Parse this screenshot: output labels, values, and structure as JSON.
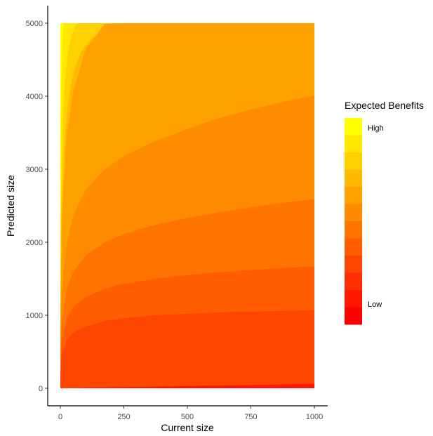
{
  "chart_data": {
    "type": "area",
    "title": "",
    "xlabel": "Current size",
    "ylabel": "Predicted size",
    "xlim": [
      0,
      1000
    ],
    "ylim": [
      0,
      5000
    ],
    "x_ticks": [
      0,
      250,
      500,
      750,
      1000
    ],
    "y_ticks": [
      0,
      1000,
      2000,
      3000,
      4000,
      5000
    ],
    "grid": false,
    "legend": {
      "title": "Expected Benefits",
      "position": "right",
      "high_label": "High",
      "low_label": "Low",
      "colors": [
        "#FF0000",
        "#FF1700",
        "#FF2E00",
        "#FF4600",
        "#FF5D00",
        "#FF7400",
        "#FF8B00",
        "#FFA200",
        "#FFB900",
        "#FFD100",
        "#FFE800",
        "#FFFF00"
      ]
    },
    "contour_bands": [
      {
        "color": "#FF1700",
        "x": [
          0,
          1000
        ],
        "y": [
          0,
          60
        ]
      },
      {
        "color": "#FF4600",
        "x": [
          0,
          5,
          25,
          50,
          100,
          175,
          250,
          375,
          500,
          625,
          750,
          875,
          1000
        ],
        "y": [
          130,
          450,
          660,
          760,
          850,
          920,
          960,
          1000,
          1020,
          1040,
          1050,
          1060,
          1070
        ]
      },
      {
        "color": "#FF5D00",
        "x": [
          0,
          5,
          25,
          50,
          100,
          175,
          250,
          375,
          500,
          625,
          750,
          875,
          1000
        ],
        "y": [
          200,
          650,
          950,
          1110,
          1250,
          1360,
          1430,
          1500,
          1550,
          1590,
          1620,
          1645,
          1670
        ]
      },
      {
        "color": "#FF7400",
        "x": [
          0,
          5,
          25,
          50,
          100,
          175,
          250,
          375,
          500,
          625,
          750,
          875,
          1000
        ],
        "y": [
          290,
          900,
          1350,
          1590,
          1820,
          2000,
          2110,
          2240,
          2330,
          2410,
          2480,
          2540,
          2590
        ]
      },
      {
        "color": "#FF8B00",
        "x": [
          0,
          5,
          25,
          50,
          100,
          175,
          250,
          375,
          500,
          625,
          750,
          875,
          1000
        ],
        "y": [
          420,
          1300,
          1980,
          2360,
          2720,
          3000,
          3180,
          3390,
          3550,
          3700,
          3820,
          3920,
          4010
        ]
      },
      {
        "color": "#FFA200",
        "x": [
          0,
          5,
          25,
          50,
          100,
          175,
          250,
          375,
          500,
          625,
          750,
          875,
          1000
        ],
        "y": [
          600,
          2300,
          3450,
          4050,
          4650,
          4990,
          5000,
          5000,
          5000,
          5000,
          5000,
          5000,
          5000
        ]
      },
      {
        "color": "#FFB900",
        "x": [
          0,
          5,
          15,
          30,
          50,
          80,
          120,
          180,
          240,
          300,
          310,
          1000
        ],
        "y": [
          900,
          2400,
          3300,
          3900,
          4300,
          4600,
          4780,
          4900,
          4970,
          5000,
          5000,
          5000
        ]
      },
      {
        "color": "#FFD100",
        "x": [
          0,
          2,
          5,
          10,
          18,
          30,
          45,
          60,
          68,
          1000
        ],
        "y": [
          1000,
          2100,
          3000,
          3700,
          4200,
          4600,
          4850,
          4970,
          5000,
          5000
        ]
      },
      {
        "color": "#FFE800",
        "x": [
          0,
          1,
          2,
          4,
          7,
          10,
          13,
          15,
          1000
        ],
        "y": [
          1500,
          2700,
          3400,
          4100,
          4600,
          4850,
          4980,
          5000,
          5000
        ]
      }
    ]
  }
}
